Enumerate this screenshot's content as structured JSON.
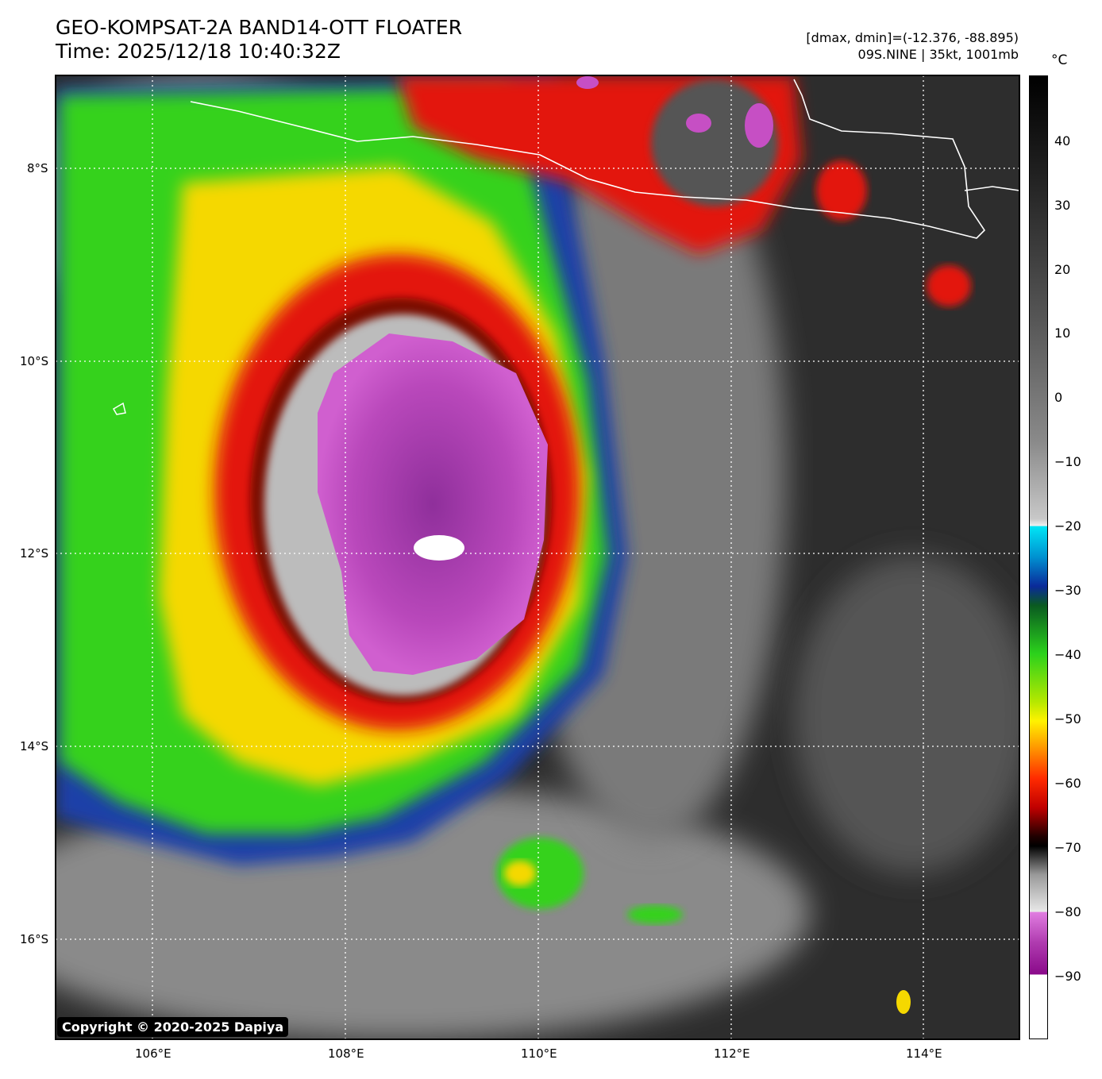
{
  "header": {
    "title_line1": "GEO-KOMPSAT-2A BAND14-OTT FLOATER",
    "title_line2": "Time: 2025/12/18 10:40:32Z",
    "range_text": "[dmax, dmin]=(-12.376, -88.895)",
    "storm_text": "09S.NINE | 35kt, 1001mb"
  },
  "colorbar": {
    "unit": "°C",
    "labels": [
      "40",
      "30",
      "20",
      "10",
      "0",
      "−10",
      "−20",
      "−30",
      "−40",
      "−50",
      "−60",
      "−70",
      "−80",
      "−90"
    ]
  },
  "axes": {
    "lon_labels": [
      "106°E",
      "108°E",
      "110°E",
      "112°E",
      "114°E"
    ],
    "lat_labels": [
      "8°S",
      "10°S",
      "12°S",
      "14°S",
      "16°S"
    ]
  },
  "copyright": "Copyright © 2020-2025 Dapiya",
  "colors": {
    "background_sea": "#2a2a2a",
    "cold_core": "#c64fc4",
    "red_band": "#e3190f",
    "green_band": "#34d21e",
    "coastline": "#ffffff"
  }
}
